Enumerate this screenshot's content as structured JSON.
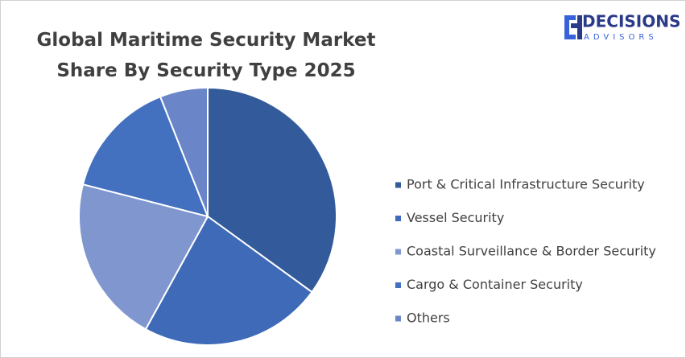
{
  "chart_data": {
    "type": "pie",
    "title": "Global Maritime Security Market Share By Security Type 2025",
    "categories": [
      "Port & Critical Infrastructure Security",
      "Vessel Security",
      "Coastal Surveillance & Border Security",
      "Cargo & Container Security",
      "Others"
    ],
    "values": [
      35,
      23,
      21,
      15,
      6
    ],
    "colors": [
      "#335a9a",
      "#3f6ab8",
      "#7f96cf",
      "#4470c0",
      "#6a86c8"
    ],
    "legend": "right"
  },
  "logo": {
    "name": "DECISIONS",
    "tagline": "ADVISORS"
  }
}
